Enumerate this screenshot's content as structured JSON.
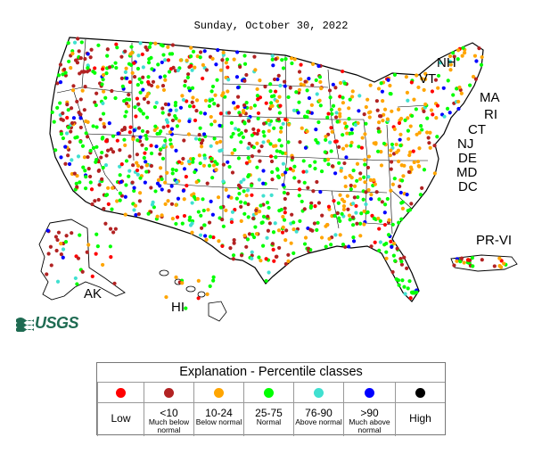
{
  "date": "Sunday, October 30, 2022",
  "state_labels": [
    "NH",
    "VT",
    "MA",
    "RI",
    "CT",
    "NJ",
    "DE",
    "MD",
    "DC",
    "PR-VI",
    "AK",
    "HI"
  ],
  "logo_text": "USGS",
  "legend": {
    "title": "Explanation - Percentile classes",
    "classes": [
      {
        "range": "",
        "main": "Low",
        "sub": "",
        "color": "#ff0000"
      },
      {
        "range": "<10",
        "main": "",
        "sub": "Much below normal",
        "color": "#b22222"
      },
      {
        "range": "10-24",
        "main": "",
        "sub": "Below normal",
        "color": "#ffa500"
      },
      {
        "range": "25-75",
        "main": "",
        "sub": "Normal",
        "color": "#00ff00"
      },
      {
        "range": "76-90",
        "main": "",
        "sub": "Above normal",
        "color": "#40e0d0"
      },
      {
        "range": ">90",
        "main": "",
        "sub": "Much above normal",
        "color": "#0000ff"
      },
      {
        "range": "",
        "main": "High",
        "sub": "",
        "color": "#000000"
      }
    ]
  },
  "colors": {
    "map_border": "#000000",
    "state_line": "#000000",
    "logo": "#1f6b52"
  }
}
